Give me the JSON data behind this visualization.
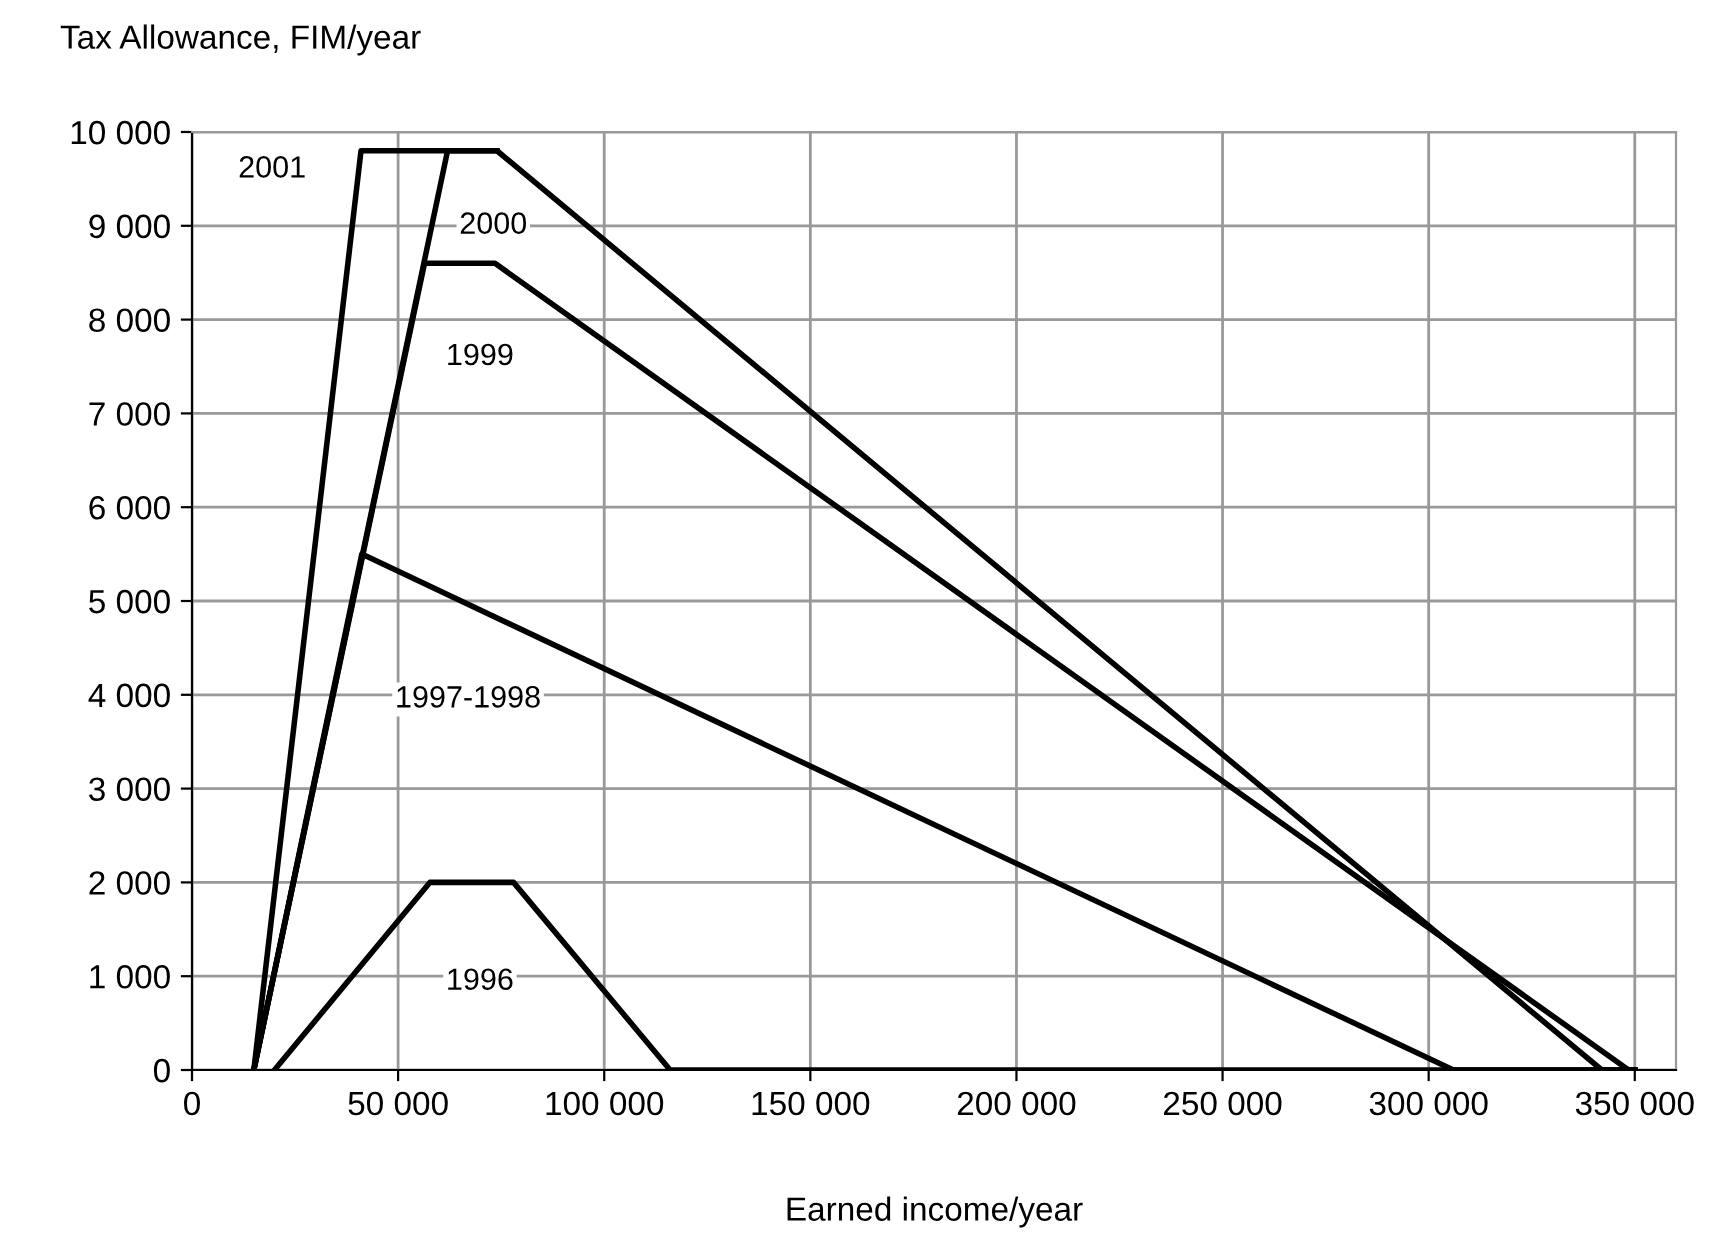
{
  "chart_data": {
    "type": "line",
    "xlabel": "Earned income/year",
    "ylabel": "Tax Allowance, FIM/year",
    "series": [
      {
        "name": "2001",
        "color": "#000000",
        "x": [
          15000,
          41000,
          74000,
          342000,
          350000
        ],
        "values": [
          0,
          9800,
          9800,
          0,
          0
        ]
      },
      {
        "name": "2000",
        "color": "#000000",
        "x": [
          15000,
          62000,
          74000
        ],
        "values": [
          0,
          9800,
          9800
        ]
      },
      {
        "name": "1999",
        "color": "#000000",
        "x": [
          15000,
          56400,
          73500,
          348500,
          350000
        ],
        "values": [
          0,
          8600,
          8600,
          0,
          0
        ]
      },
      {
        "name": "1997-1998",
        "color": "#000000",
        "x": [
          15000,
          41200,
          306000,
          350000
        ],
        "values": [
          0,
          5500,
          0,
          0
        ]
      },
      {
        "name": "1996",
        "color": "#000000",
        "x": [
          20000,
          57700,
          78000,
          116000,
          350000
        ],
        "values": [
          0,
          2000,
          2000,
          0,
          0
        ]
      }
    ],
    "xlim": [
      0,
      360000
    ],
    "ylim": [
      0,
      10000
    ],
    "xticks": [
      0,
      {
        "value": 50000,
        "label": "50 000"
      },
      {
        "value": 100000,
        "label": "100 000"
      },
      {
        "value": 150000,
        "label": "150 000"
      },
      {
        "value": 200000,
        "label": "200 000"
      },
      {
        "value": 250000,
        "label": "250 000"
      },
      {
        "value": 300000,
        "label": "300 000"
      },
      {
        "value": 350000,
        "label": "350 000"
      }
    ],
    "yticks": [
      0,
      {
        "value": 1000,
        "label": "1 000"
      },
      {
        "value": 2000,
        "label": "2 000"
      },
      {
        "value": 3000,
        "label": "3 000"
      },
      {
        "value": 4000,
        "label": "4 000"
      },
      {
        "value": 5000,
        "label": "5 000"
      },
      {
        "value": 6000,
        "label": "6 000"
      },
      {
        "value": 7000,
        "label": "7 000"
      },
      {
        "value": 8000,
        "label": "8 000"
      },
      {
        "value": 9000,
        "label": "9 000"
      },
      {
        "value": 10000,
        "label": "10 000"
      }
    ],
    "grid": true,
    "marker": "none",
    "line_style": "solid"
  }
}
